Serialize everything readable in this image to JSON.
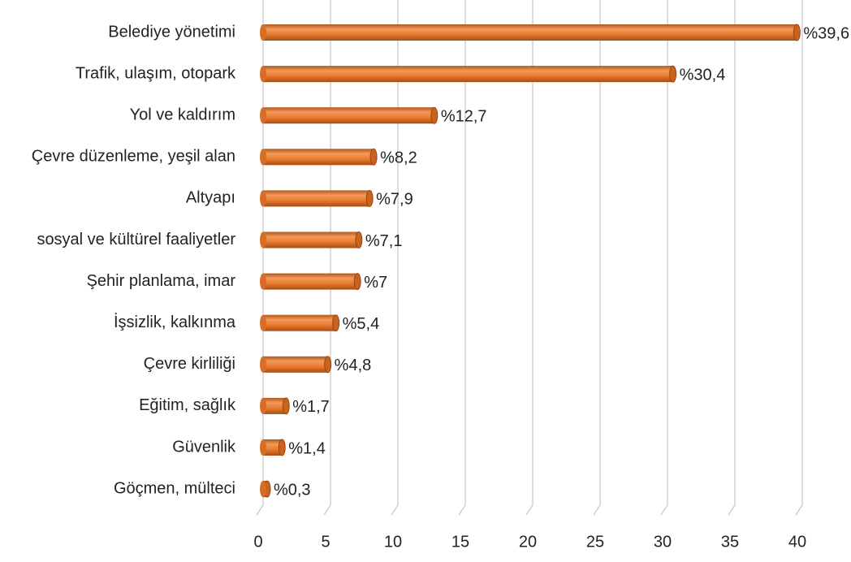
{
  "chart_data": {
    "type": "bar",
    "orientation": "horizontal",
    "categories": [
      "Belediye yönetimi",
      "Trafik, ulaşım, otopark",
      "Yol ve kaldırım",
      "Çevre düzenleme, yeşil alan",
      "Altyapı",
      "sosyal ve kültürel faaliyetler",
      "Şehir planlama, imar",
      "İşsizlik, kalkınma",
      "Çevre kirliliği",
      "Eğitim, sağlık",
      "Güvenlik",
      "Göçmen, mülteci"
    ],
    "values": [
      39.6,
      30.4,
      12.7,
      8.2,
      7.9,
      7.1,
      7,
      5.4,
      4.8,
      1.7,
      1.4,
      0.3
    ],
    "value_labels": [
      "%39,6",
      "%30,4",
      "%12,7",
      "%8,2",
      "%7,9",
      "%7,1",
      "%7",
      "%5,4",
      "%4,8",
      "%1,7",
      "%1,4",
      "%0,3"
    ],
    "color": "#ed7d31",
    "xlim": [
      0,
      40
    ],
    "xticks": [
      0,
      5,
      10,
      15,
      20,
      25,
      30,
      35,
      40
    ],
    "grid": true
  }
}
